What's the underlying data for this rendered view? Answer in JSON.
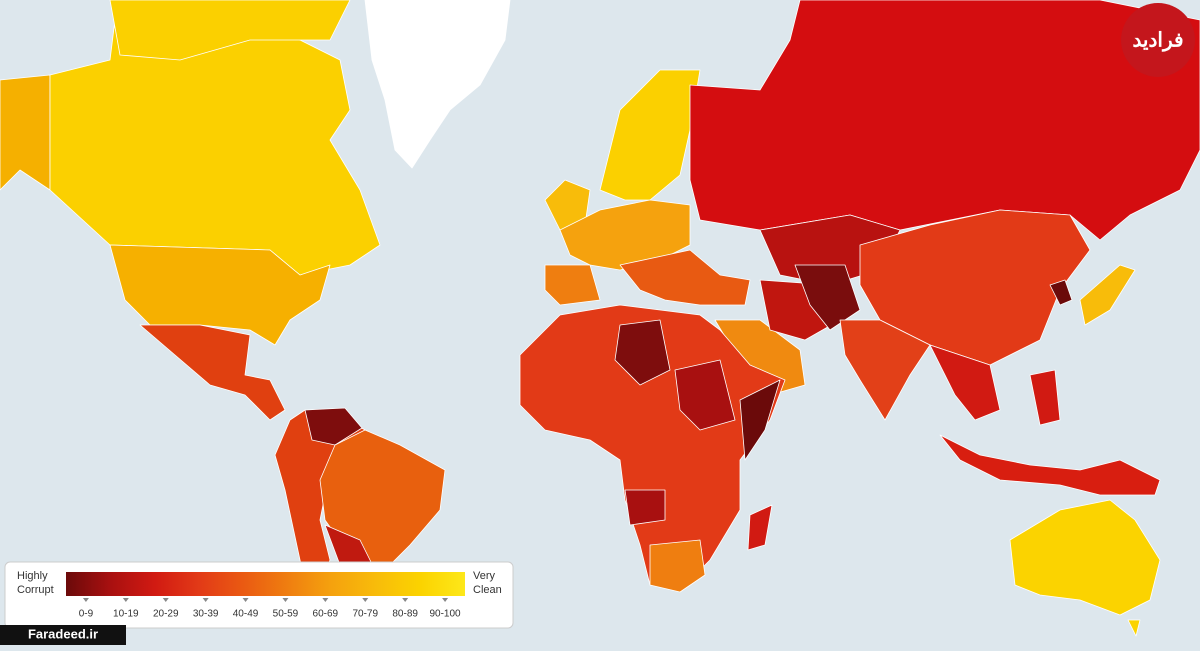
{
  "legend": {
    "low_label": "Highly Corrupt",
    "high_label": "Very Clean",
    "ranges": [
      {
        "label": "0-9",
        "color": "#6b0a0a"
      },
      {
        "label": "10-19",
        "color": "#a81010"
      },
      {
        "label": "20-29",
        "color": "#d11a12"
      },
      {
        "label": "30-39",
        "color": "#e23a17"
      },
      {
        "label": "40-49",
        "color": "#ea5a12"
      },
      {
        "label": "50-59",
        "color": "#ef7e10"
      },
      {
        "label": "60-69",
        "color": "#f5a20e"
      },
      {
        "label": "70-79",
        "color": "#f8bc0a"
      },
      {
        "label": "80-89",
        "color": "#fbd300"
      },
      {
        "label": "90-100",
        "color": "#fde81a"
      }
    ]
  },
  "watermark": "Faradeed.ir",
  "logo": "فرادید"
}
